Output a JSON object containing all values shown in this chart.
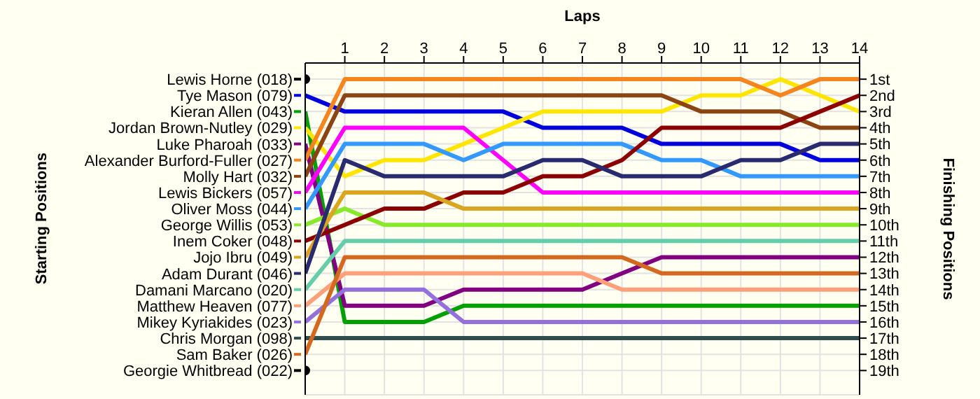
{
  "chart_data": {
    "type": "line",
    "xlabel": "Laps",
    "annotations": [
      "Starting Positions"
    ],
    "y2label": "Finishing Positions",
    "x": [
      0,
      1,
      2,
      3,
      4,
      5,
      6,
      7,
      8,
      9,
      10,
      11,
      12,
      13,
      14
    ],
    "xlim": [
      0,
      14
    ],
    "xticks": [
      1,
      2,
      3,
      4,
      5,
      6,
      7,
      8,
      9,
      10,
      11,
      12,
      13,
      14
    ],
    "y2lim": [
      20.5,
      0
    ],
    "y2ticks": [
      {
        "value": 1,
        "label": "1st"
      },
      {
        "value": 2,
        "label": "2nd"
      },
      {
        "value": 3,
        "label": "3rd"
      },
      {
        "value": 4,
        "label": "4th"
      },
      {
        "value": 5,
        "label": "5th"
      },
      {
        "value": 6,
        "label": "6th"
      },
      {
        "value": 7,
        "label": "7th"
      },
      {
        "value": 8,
        "label": "8th"
      },
      {
        "value": 9,
        "label": "9th"
      },
      {
        "value": 10,
        "label": "10th"
      },
      {
        "value": 11,
        "label": "11th"
      },
      {
        "value": 12,
        "label": "12th"
      },
      {
        "value": 13,
        "label": "13th"
      },
      {
        "value": 14,
        "label": "14th"
      },
      {
        "value": 15,
        "label": "15th"
      },
      {
        "value": 16,
        "label": "16th"
      },
      {
        "value": 17,
        "label": "17th"
      },
      {
        "value": 18,
        "label": "18th"
      },
      {
        "value": 19,
        "label": "19th"
      }
    ],
    "grid": true,
    "legend": "left",
    "marker": "none",
    "line_style": "solid",
    "series": [
      {
        "name": "Lewis Horne (018)",
        "axis": "y2",
        "color": "#000000",
        "marker": "circle",
        "values": [
          1,
          null,
          null,
          null,
          null,
          null,
          null,
          null,
          null,
          null,
          null,
          null,
          null,
          null,
          null
        ]
      },
      {
        "name": "Tye Mason (079)",
        "axis": "y2",
        "color": "#0000dd",
        "values": [
          2,
          3,
          3,
          3,
          3,
          3,
          4,
          4,
          4,
          5,
          5,
          5,
          5,
          6,
          6
        ]
      },
      {
        "name": "Kieran Allen (043)",
        "axis": "y2",
        "color": "#00a000",
        "values": [
          3,
          16,
          16,
          16,
          15,
          15,
          15,
          15,
          15,
          15,
          15,
          15,
          15,
          15,
          15
        ]
      },
      {
        "name": "Jordan Brown-Nutley (029)",
        "axis": "y2",
        "color": "#ffe600",
        "values": [
          4,
          7,
          6,
          6,
          5,
          4,
          3,
          3,
          3,
          3,
          2,
          2,
          1,
          2,
          3
        ]
      },
      {
        "name": "Luke Pharoah (033)",
        "axis": "y2",
        "color": "#800080",
        "values": [
          5,
          15,
          15,
          15,
          14,
          14,
          14,
          14,
          13,
          12,
          12,
          12,
          12,
          12,
          12
        ]
      },
      {
        "name": "Alexander Burford-Fuller (027)",
        "axis": "y2",
        "color": "#f5861f",
        "values": [
          6,
          1,
          1,
          1,
          1,
          1,
          1,
          1,
          1,
          1,
          1,
          1,
          2,
          1,
          1
        ]
      },
      {
        "name": "Molly Hart (032)",
        "axis": "y2",
        "color": "#8b4513",
        "values": [
          7,
          2,
          2,
          2,
          2,
          2,
          2,
          2,
          2,
          2,
          3,
          3,
          3,
          4,
          4
        ]
      },
      {
        "name": "Lewis Bickers (057)",
        "axis": "y2",
        "color": "#ff00ff",
        "values": [
          8,
          4,
          4,
          4,
          4,
          6,
          8,
          8,
          8,
          8,
          8,
          8,
          8,
          8,
          8
        ]
      },
      {
        "name": "Oliver Moss (044)",
        "axis": "y2",
        "color": "#3399ff",
        "values": [
          9,
          5,
          5,
          5,
          6,
          5,
          5,
          5,
          5,
          6,
          6,
          7,
          7,
          7,
          7
        ]
      },
      {
        "name": "George Willis (053)",
        "axis": "y2",
        "color": "#88e82a",
        "values": [
          10,
          9,
          10,
          10,
          10,
          10,
          10,
          10,
          10,
          10,
          10,
          10,
          10,
          10,
          10
        ]
      },
      {
        "name": "Inem Coker (048)",
        "axis": "y2",
        "color": "#8b0000",
        "values": [
          11,
          10,
          9,
          9,
          8,
          8,
          7,
          7,
          6,
          4,
          4,
          4,
          4,
          3,
          2
        ]
      },
      {
        "name": "Jojo Ibru (049)",
        "axis": "y2",
        "color": "#daa520",
        "values": [
          12,
          8,
          8,
          8,
          9,
          9,
          9,
          9,
          9,
          9,
          9,
          9,
          9,
          9,
          9
        ]
      },
      {
        "name": "Adam Durant (046)",
        "axis": "y2",
        "color": "#2a2a6e",
        "values": [
          13,
          6,
          7,
          7,
          7,
          7,
          6,
          6,
          7,
          7,
          7,
          6,
          6,
          5,
          5
        ]
      },
      {
        "name": "Damani Marcano (020)",
        "axis": "y2",
        "color": "#66cdaa",
        "values": [
          14,
          11,
          11,
          11,
          11,
          11,
          11,
          11,
          11,
          11,
          11,
          11,
          11,
          11,
          11
        ]
      },
      {
        "name": "Matthew Heaven (077)",
        "axis": "y2",
        "color": "#ffa07a",
        "values": [
          15,
          13,
          13,
          13,
          13,
          13,
          13,
          13,
          14,
          14,
          14,
          14,
          14,
          14,
          14
        ]
      },
      {
        "name": "Mikey Kyriakides (023)",
        "axis": "y2",
        "color": "#9370db",
        "values": [
          16,
          14,
          14,
          14,
          16,
          16,
          16,
          16,
          16,
          16,
          16,
          16,
          16,
          16,
          16
        ]
      },
      {
        "name": "Chris Morgan (098)",
        "axis": "y2",
        "color": "#2f4f4f",
        "values": [
          17,
          17,
          17,
          17,
          17,
          17,
          17,
          17,
          17,
          17,
          17,
          17,
          17,
          17,
          17
        ]
      },
      {
        "name": "Sam Baker (026)",
        "axis": "y2",
        "color": "#d2691e",
        "values": [
          18,
          12,
          12,
          12,
          12,
          12,
          12,
          12,
          12,
          13,
          13,
          13,
          13,
          13,
          13
        ]
      },
      {
        "name": "Georgie Whitbread (022)",
        "axis": "y2",
        "color": "#000000",
        "marker": "circle",
        "values": [
          19,
          null,
          null,
          null,
          null,
          null,
          null,
          null,
          null,
          null,
          null,
          null,
          null,
          null,
          null
        ]
      }
    ]
  }
}
